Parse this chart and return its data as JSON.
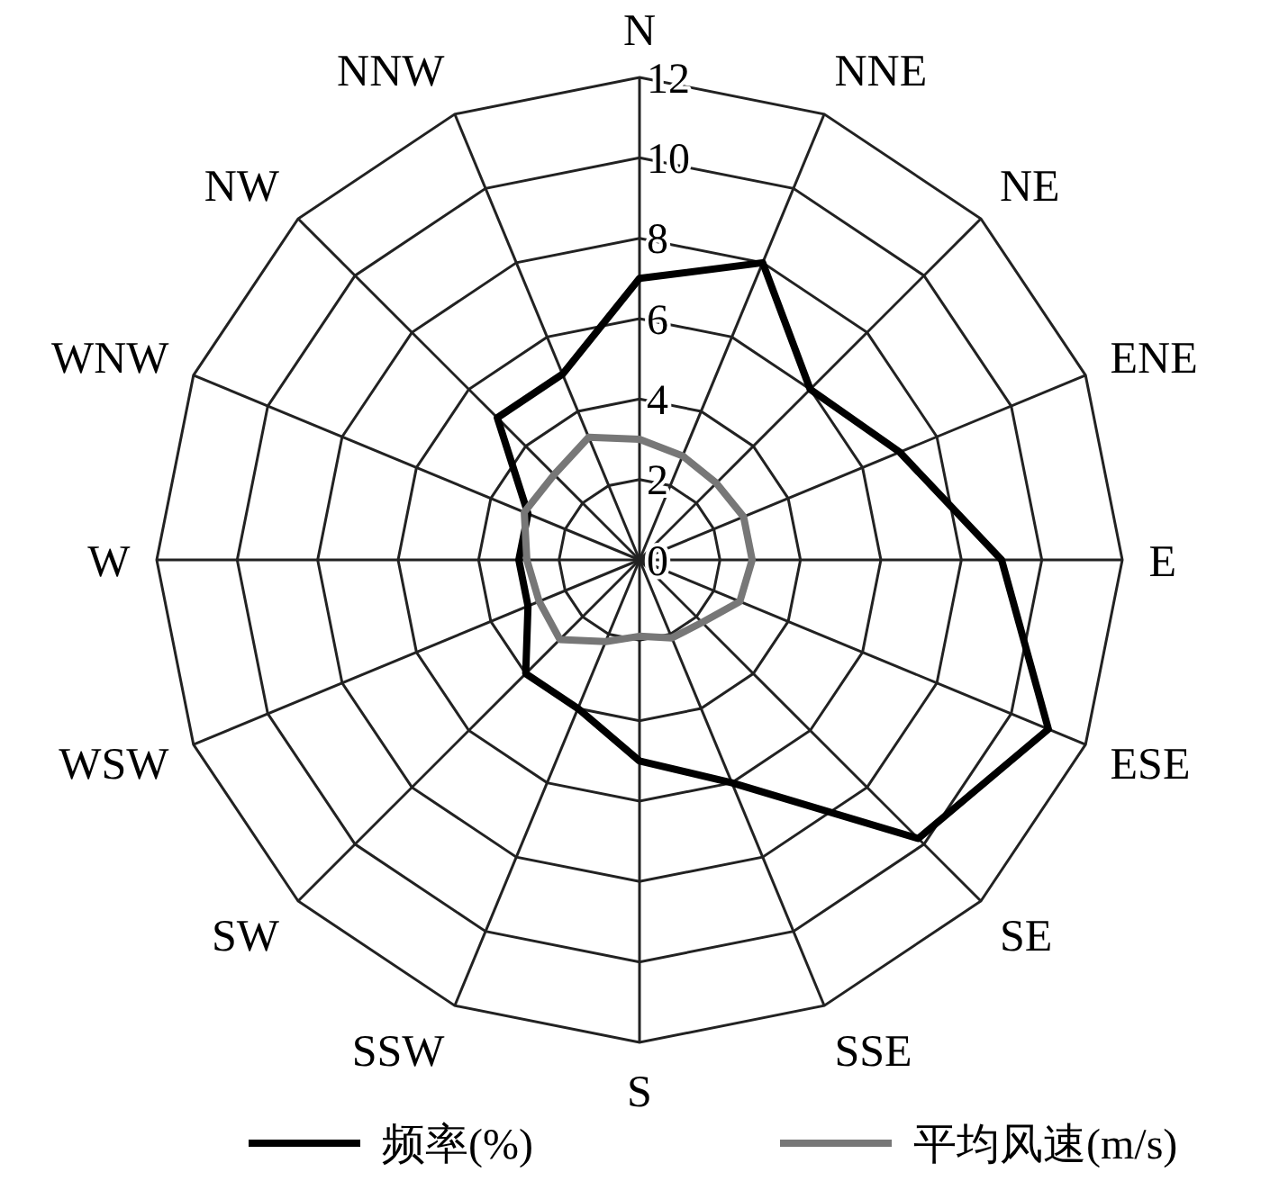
{
  "chart_data": {
    "type": "radar",
    "categories": [
      "N",
      "NNE",
      "NE",
      "ENE",
      "E",
      "ESE",
      "SE",
      "SSE",
      "S",
      "SSW",
      "SW",
      "WSW",
      "W",
      "WNW",
      "NW",
      "NNW"
    ],
    "series": [
      {
        "name": "频率(%)",
        "color": "#000000",
        "values": [
          7,
          8,
          6,
          7,
          9,
          11,
          9.8,
          6,
          5,
          4,
          4,
          3,
          3,
          3,
          5,
          5
        ]
      },
      {
        "name": "平均风速(m/s)",
        "color": "#777777",
        "values": [
          3,
          2.8,
          2.7,
          2.8,
          2.8,
          2.7,
          2.2,
          2.1,
          1.9,
          2.2,
          2.8,
          2.7,
          2.8,
          3.1,
          3,
          3.3
        ]
      }
    ],
    "ylim": [
      0,
      12
    ],
    "yticks": [
      0,
      2,
      4,
      6,
      8,
      10,
      12
    ],
    "grid": true,
    "legend": "bottom",
    "line_style": "solid",
    "marker": "none"
  }
}
